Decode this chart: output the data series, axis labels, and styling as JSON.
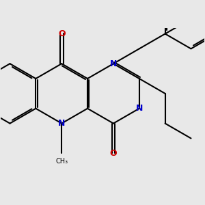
{
  "bg_color": "#e8e8e8",
  "bond_color": "#000000",
  "N_color": "#0000cc",
  "O_color": "#cc0000",
  "bond_width": 1.5,
  "dbo": 0.055,
  "figsize": [
    3.0,
    3.0
  ],
  "dpi": 100,
  "xlim": [
    -0.3,
    6.5
  ],
  "ylim": [
    -2.8,
    2.2
  ]
}
